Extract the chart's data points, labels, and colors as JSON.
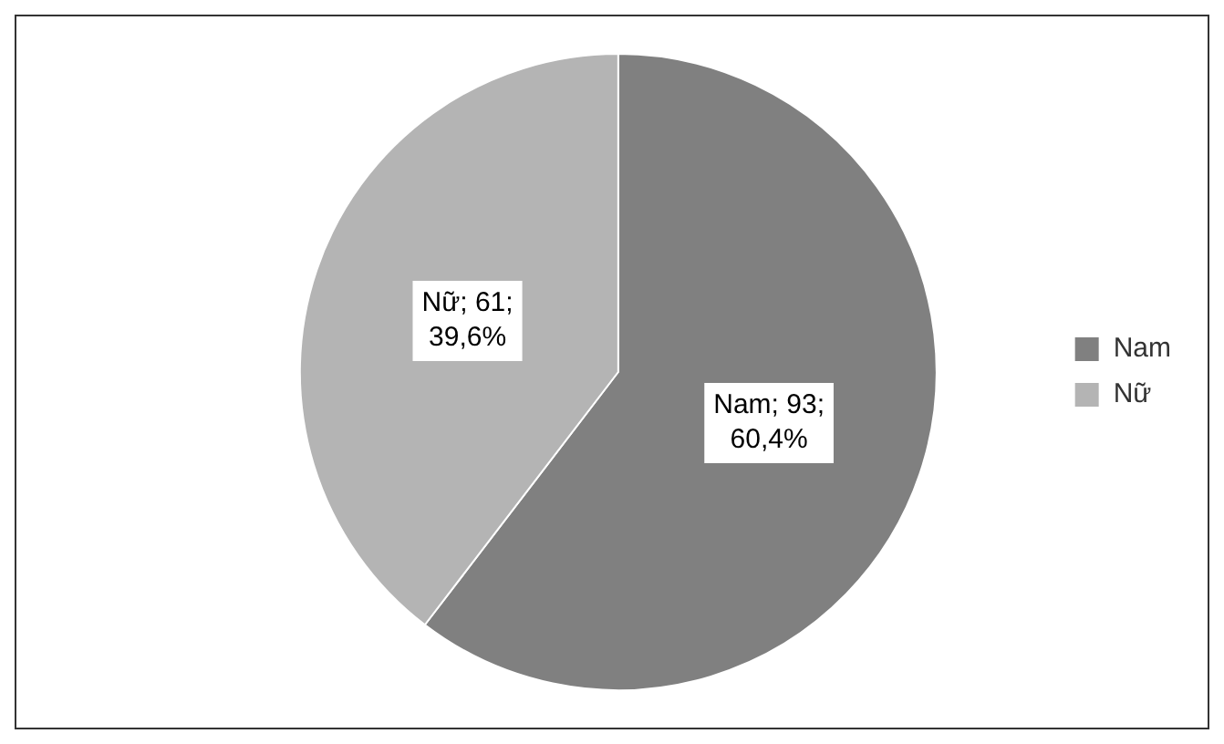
{
  "chart_data": {
    "type": "pie",
    "categories": [
      "Nam",
      "Nữ"
    ],
    "values": [
      93,
      61
    ],
    "colors": [
      "#808080",
      "#b4b4b4"
    ],
    "value_labels": [
      "Nam; 93; 60,4%",
      "Nữ; 61; 39,6%"
    ],
    "legend": "right"
  }
}
